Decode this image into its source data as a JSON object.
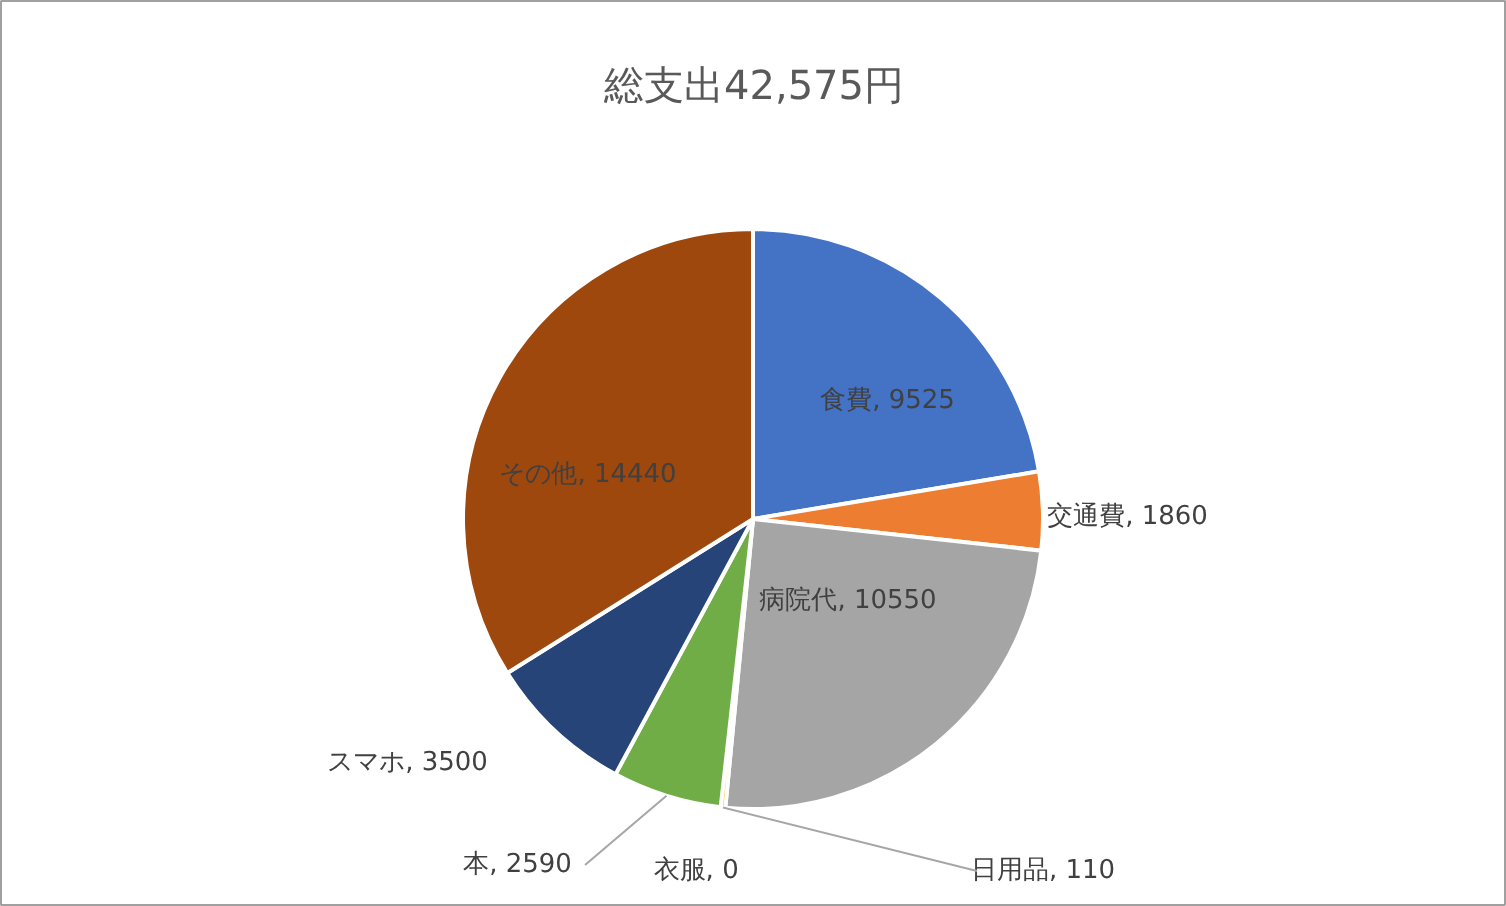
{
  "chart_data": {
    "type": "pie",
    "title": "総支出42,575円",
    "categories": [
      "食費",
      "交通費",
      "病院代",
      "日用品",
      "衣服",
      "本",
      "スマホ",
      "その他"
    ],
    "values": [
      9525,
      1860,
      10550,
      110,
      0,
      2590,
      3500,
      14440
    ],
    "colors": [
      "#4472c4",
      "#ed7d31",
      "#a5a5a5",
      "#ffc000",
      "#5b9bd5",
      "#70ad47",
      "#264478",
      "#9e480e"
    ],
    "value_labels": [
      ", 9525",
      ", 1860",
      ", 10550",
      ", 110",
      ", 0",
      ", 2590",
      ", 3500",
      ", 14440"
    ]
  }
}
